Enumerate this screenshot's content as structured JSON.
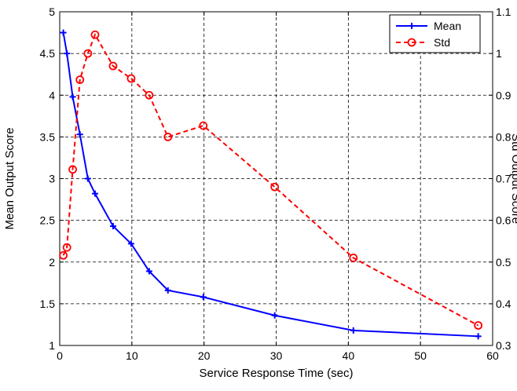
{
  "chart_data": {
    "type": "line",
    "title": "",
    "xlabel": "Service Response Time (sec)",
    "ylabel_left": "Mean Output Score",
    "ylabel_right": "Std Output Score",
    "xlim": [
      0,
      60
    ],
    "ylim_left": [
      1,
      5
    ],
    "ylim_right": [
      0.3,
      1.1
    ],
    "x_ticks": [
      0,
      10,
      20,
      30,
      40,
      50,
      60
    ],
    "y_ticks_left": [
      1,
      1.5,
      2,
      2.5,
      3,
      3.5,
      4,
      4.5,
      5
    ],
    "y_ticks_right": [
      0.3,
      0.4,
      0.5,
      0.6,
      0.7,
      0.8,
      0.9,
      1,
      1.1
    ],
    "x_tick_labels": [
      "0",
      "10",
      "20",
      "30",
      "40",
      "50",
      "60"
    ],
    "y_tick_labels_left": [
      "1",
      "1.5",
      "2",
      "2.5",
      "3",
      "3.5",
      "4",
      "4.5",
      "5"
    ],
    "y_tick_labels_right": [
      "0.3",
      "0.4",
      "0.5",
      "0.6",
      "0.7",
      "0.8",
      "0.9",
      "1",
      "1.1"
    ],
    "grid": true,
    "legend_position": "top-right",
    "series": [
      {
        "name": "Mean",
        "axis": "left",
        "color": "#0000ff",
        "line_style": "solid",
        "marker": "plus",
        "x": [
          0.5,
          1.0,
          1.8,
          2.8,
          3.9,
          4.9,
          7.4,
          9.9,
          12.4,
          15.0,
          19.9,
          29.8,
          40.7,
          58.0
        ],
        "y": [
          4.75,
          4.5,
          3.98,
          3.53,
          3.0,
          2.82,
          2.43,
          2.22,
          1.89,
          1.66,
          1.58,
          1.36,
          1.18,
          1.11
        ]
      },
      {
        "name": "Std",
        "axis": "right",
        "color": "#ff0000",
        "line_style": "dashed",
        "marker": "circle",
        "x": [
          0.5,
          1.0,
          1.8,
          2.8,
          3.9,
          4.9,
          7.4,
          9.9,
          12.4,
          15.0,
          19.9,
          29.8,
          40.7,
          58.0
        ],
        "y": [
          0.516,
          0.535,
          0.722,
          0.937,
          1.0,
          1.045,
          0.97,
          0.94,
          0.9,
          0.8,
          0.827,
          0.68,
          0.51,
          0.348
        ]
      }
    ]
  }
}
